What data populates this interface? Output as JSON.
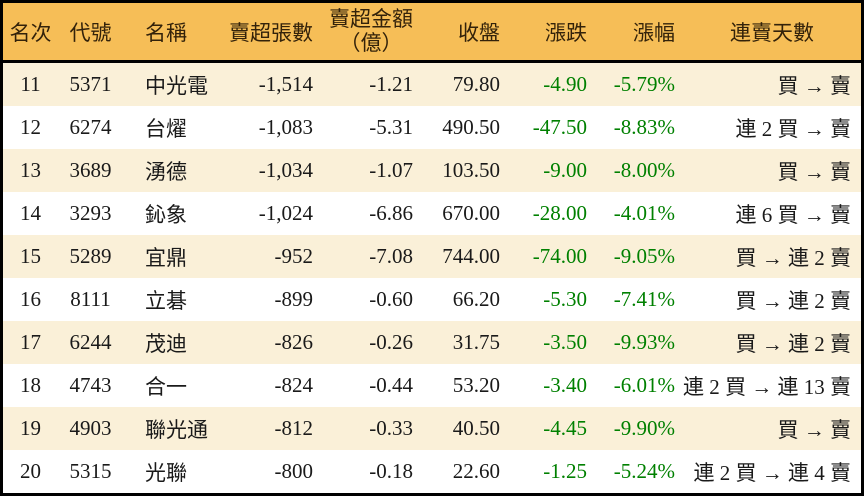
{
  "colors": {
    "header_bg": "#F6BE57",
    "header_text": "#33220A",
    "row_alt_bg": "#FAF0D8",
    "row_bg": "#FFFFFF",
    "border": "#000000",
    "text": "#1A1A1A",
    "down_green": "#008000"
  },
  "chart_data": {
    "type": "table",
    "header": {
      "rank": "名次",
      "code": "代號",
      "name": "名稱",
      "net_sell_lots": "賣超張數",
      "net_sell_amount_line1": "賣超金額",
      "net_sell_amount_line2": "（億）",
      "close": "收盤",
      "change": "漲跌",
      "change_pct": "漲幅",
      "streak": "連賣天數"
    },
    "column_keys": [
      "rank",
      "code",
      "name",
      "net_sell_lots",
      "net_sell_amount",
      "close",
      "change",
      "change_pct",
      "streak"
    ],
    "rows": [
      [
        "11",
        "5371",
        "中光電",
        "-1,514",
        "-1.21",
        "79.80",
        "-4.90",
        "-5.79%",
        "買 → 賣"
      ],
      [
        "12",
        "6274",
        "台燿",
        "-1,083",
        "-5.31",
        "490.50",
        "-47.50",
        "-8.83%",
        "連 2 買 → 賣"
      ],
      [
        "13",
        "3689",
        "湧德",
        "-1,034",
        "-1.07",
        "103.50",
        "-9.00",
        "-8.00%",
        "買 → 賣"
      ],
      [
        "14",
        "3293",
        "鈊象",
        "-1,024",
        "-6.86",
        "670.00",
        "-28.00",
        "-4.01%",
        "連 6 買 → 賣"
      ],
      [
        "15",
        "5289",
        "宜鼎",
        "-952",
        "-7.08",
        "744.00",
        "-74.00",
        "-9.05%",
        "買 → 連 2 賣"
      ],
      [
        "16",
        "8111",
        "立碁",
        "-899",
        "-0.60",
        "66.20",
        "-5.30",
        "-7.41%",
        "買 → 連 2 賣"
      ],
      [
        "17",
        "6244",
        "茂迪",
        "-826",
        "-0.26",
        "31.75",
        "-3.50",
        "-9.93%",
        "買 → 連 2 賣"
      ],
      [
        "18",
        "4743",
        "合一",
        "-824",
        "-0.44",
        "53.20",
        "-3.40",
        "-6.01%",
        "連 2 買 → 連 13 賣"
      ],
      [
        "19",
        "4903",
        "聯光通",
        "-812",
        "-0.33",
        "40.50",
        "-4.45",
        "-9.90%",
        "買 → 賣"
      ],
      [
        "20",
        "5315",
        "光聯",
        "-800",
        "-0.18",
        "22.60",
        "-1.25",
        "-5.24%",
        "連 2 買 → 連 4 賣"
      ]
    ]
  }
}
